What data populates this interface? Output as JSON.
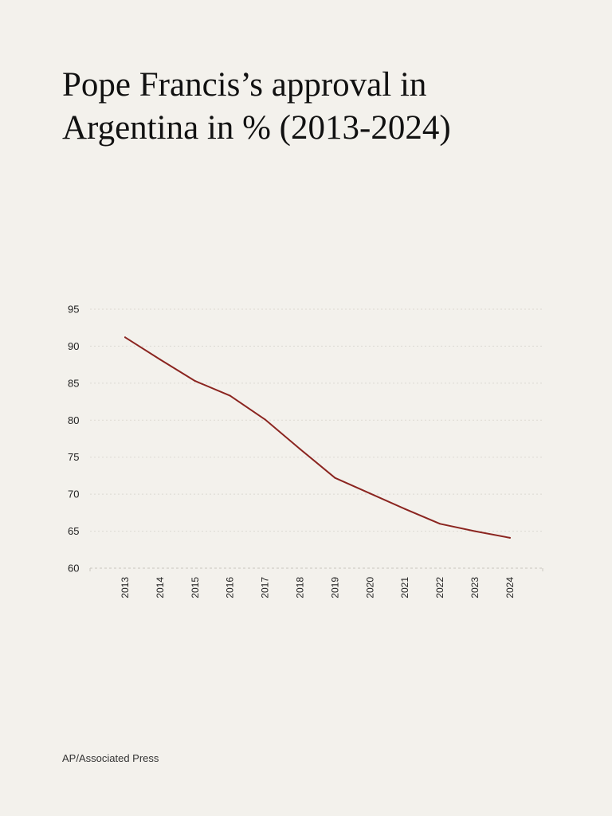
{
  "source": "AP/Associated Press",
  "colors": {
    "line": "#8b2520",
    "background": "#f3f1ec"
  },
  "chart_data": {
    "type": "line",
    "title": "Pope Francis’s approval in Argentina in % (2013-2024)",
    "xlabel": "",
    "ylabel": "",
    "categories": [
      "2013",
      "2014",
      "2015",
      "2016",
      "2017",
      "2018",
      "2019",
      "2020",
      "2021",
      "2022",
      "2023",
      "2024"
    ],
    "series": [
      {
        "values": [
          91.2,
          88.2,
          85.3,
          83.3,
          80.1,
          76.1,
          72.2,
          70.1,
          68.0,
          66.0,
          65.0,
          64.1
        ]
      }
    ],
    "ylim": [
      60,
      95
    ],
    "yticks": [
      60,
      65,
      70,
      75,
      80,
      85,
      90,
      95
    ],
    "grid": true,
    "legend": "none"
  }
}
